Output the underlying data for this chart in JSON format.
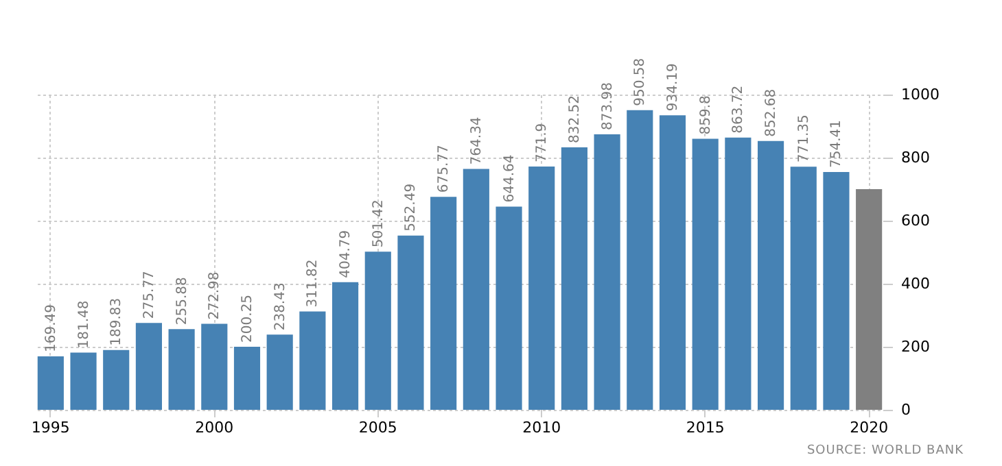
{
  "chart_data": {
    "type": "bar",
    "categories": [
      "1995",
      null,
      null,
      null,
      null,
      "2000",
      null,
      null,
      null,
      null,
      "2005",
      null,
      null,
      null,
      null,
      "2010",
      null,
      null,
      null,
      null,
      "2015",
      null,
      null,
      null,
      null,
      "2020"
    ],
    "values": [
      169.49,
      181.48,
      189.83,
      275.77,
      255.88,
      272.98,
      200.25,
      238.43,
      311.82,
      404.79,
      501.42,
      552.49,
      675.77,
      764.34,
      644.64,
      771.9,
      832.52,
      873.98,
      950.58,
      934.19,
      859.8,
      863.72,
      852.68,
      771.35,
      754.41,
      700
    ],
    "value_labels": [
      "169.49",
      "181.48",
      "189.83",
      "275.77",
      "255.88",
      "272.98",
      "200.25",
      "238.43",
      "311.82",
      "404.79",
      "501.42",
      "552.49",
      "675.77",
      "764.34",
      "644.64",
      "771.9",
      "832.52",
      "873.98",
      "950.58",
      "934.19",
      "859.8",
      "863.72",
      "852.68",
      "771.35",
      "754.41",
      null
    ],
    "colors": [
      "#4682b4",
      "#4682b4",
      "#4682b4",
      "#4682b4",
      "#4682b4",
      "#4682b4",
      "#4682b4",
      "#4682b4",
      "#4682b4",
      "#4682b4",
      "#4682b4",
      "#4682b4",
      "#4682b4",
      "#4682b4",
      "#4682b4",
      "#4682b4",
      "#4682b4",
      "#4682b4",
      "#4682b4",
      "#4682b4",
      "#4682b4",
      "#4682b4",
      "#4682b4",
      "#4682b4",
      "#4682b4",
      "#808080"
    ],
    "ylim": [
      0,
      1000
    ],
    "yticks": [
      0,
      200,
      400,
      600,
      800,
      1000
    ],
    "grid": true,
    "annotations": [
      "SOURCE: WORLD BANK"
    ]
  }
}
